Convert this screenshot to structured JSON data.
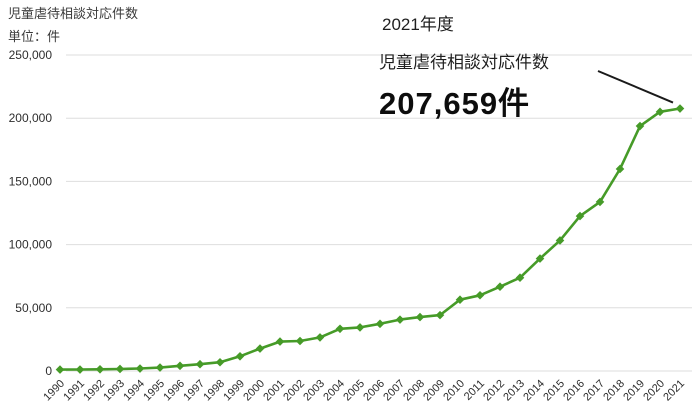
{
  "header": {
    "title": "児童虐待相談対応件数",
    "unit_label": "単位：件"
  },
  "annotation": {
    "year_label": "2021年度",
    "metric_label": "児童虐待相談対応件数",
    "value_label": "207,659件"
  },
  "chart_data": {
    "type": "line",
    "title": "児童虐待相談対応件数",
    "ylabel": "件",
    "x": [
      1990,
      1991,
      1992,
      1993,
      1994,
      1995,
      1996,
      1997,
      1998,
      1999,
      2000,
      2001,
      2002,
      2003,
      2004,
      2005,
      2006,
      2007,
      2008,
      2009,
      2010,
      2011,
      2012,
      2013,
      2014,
      2015,
      2016,
      2017,
      2018,
      2019,
      2020,
      2021
    ],
    "series": [
      {
        "name": "児童虐待相談対応件数",
        "values": [
          1101,
          1171,
          1372,
          1611,
          1961,
          2722,
          4102,
          5352,
          6932,
          11631,
          17725,
          23274,
          23738,
          26569,
          33408,
          34472,
          37323,
          40639,
          42664,
          44211,
          56384,
          59919,
          66701,
          73802,
          88931,
          103286,
          122575,
          133778,
          159838,
          193780,
          205044,
          207659
        ]
      }
    ],
    "ylim": [
      0,
      250000
    ],
    "yticks": [
      0,
      50000,
      100000,
      150000,
      200000,
      250000
    ],
    "grid": true,
    "legend_position": "none",
    "highlight_last_value": 207659,
    "colors": {
      "line": "#469b28",
      "marker": "#469b28",
      "grid": "#dedede",
      "axis_text": "#2e2e2e",
      "callout_line": "#1a1a1a"
    }
  }
}
